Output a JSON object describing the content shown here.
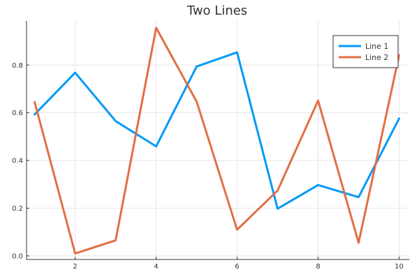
{
  "chart_data": {
    "type": "line",
    "title": "Two Lines",
    "xlabel": "",
    "ylabel": "",
    "x": [
      1,
      2,
      3,
      4,
      5,
      6,
      7,
      8,
      9,
      10
    ],
    "xlim": [
      0.8,
      10.25
    ],
    "ylim": [
      -0.015,
      0.985
    ],
    "xticks": [
      2,
      4,
      6,
      8,
      10
    ],
    "xtick_labels": [
      "2",
      "4",
      "6",
      "8",
      "10"
    ],
    "yticks": [
      0.0,
      0.2,
      0.4,
      0.6,
      0.8
    ],
    "ytick_labels": [
      "0.0",
      "0.2",
      "0.4",
      "0.6",
      "0.8"
    ],
    "grid": true,
    "legend_position": "top-right",
    "series": [
      {
        "name": "Line 1",
        "color": "#009af9",
        "values": [
          0.593,
          0.768,
          0.565,
          0.459,
          0.794,
          0.853,
          0.198,
          0.297,
          0.246,
          0.576
        ]
      },
      {
        "name": "Line 2",
        "color": "#e26f46",
        "values": [
          0.645,
          0.01,
          0.065,
          0.956,
          0.647,
          0.11,
          0.274,
          0.651,
          0.055,
          0.841
        ]
      }
    ]
  }
}
